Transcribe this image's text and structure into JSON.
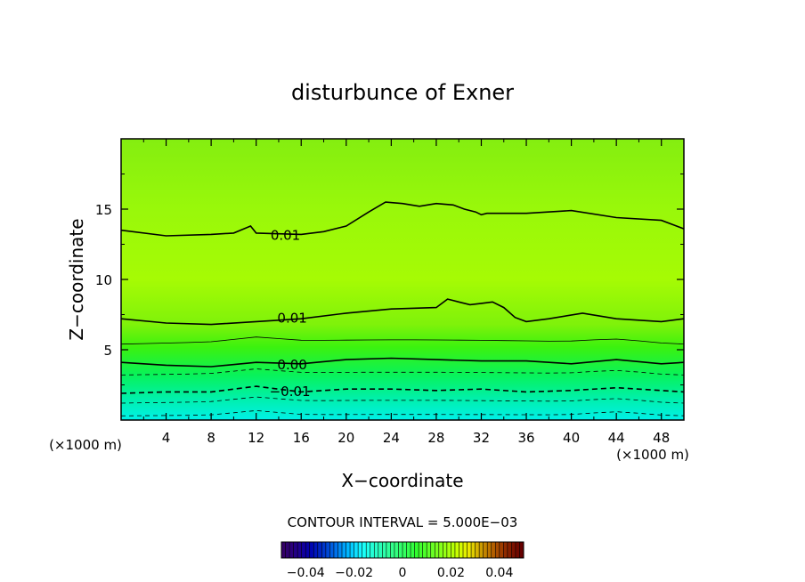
{
  "chart_data": {
    "type": "heatmap",
    "title": "disturbunce of Exner",
    "xlabel": "X−coordinate",
    "ylabel": "Z−coordinate",
    "x_unit_left": "(×1000 m)",
    "x_unit_right": "(×1000 m)",
    "xlim": [
      0,
      50
    ],
    "ylim": [
      0,
      20
    ],
    "x_ticks": [
      4,
      8,
      12,
      16,
      20,
      24,
      28,
      32,
      36,
      40,
      44,
      48
    ],
    "x_tick_labels": [
      "4",
      "8",
      "12",
      "16",
      "20",
      "24",
      "28",
      "32",
      "36",
      "40",
      "44",
      "48"
    ],
    "y_ticks": [
      5,
      10,
      15
    ],
    "y_tick_labels": [
      "5",
      "10",
      "15"
    ],
    "contour_interval_label": "CONTOUR INTERVAL = 5.000E−03",
    "contours": [
      {
        "level": 0.01,
        "label": "0.01",
        "label_at": [
          14.6,
          13.2
        ],
        "points": [
          [
            0,
            13.5
          ],
          [
            4,
            13.1
          ],
          [
            8,
            13.2
          ],
          [
            10,
            13.3
          ],
          [
            11.5,
            13.8
          ],
          [
            12,
            13.3
          ],
          [
            16,
            13.2
          ],
          [
            18,
            13.4
          ],
          [
            20,
            13.8
          ],
          [
            22,
            14.8
          ],
          [
            23.5,
            15.5
          ],
          [
            25,
            15.4
          ],
          [
            26.5,
            15.2
          ],
          [
            28,
            15.4
          ],
          [
            29.5,
            15.3
          ],
          [
            30.5,
            15.0
          ],
          [
            31.5,
            14.8
          ],
          [
            32,
            14.6
          ],
          [
            32.5,
            14.7
          ],
          [
            36,
            14.7
          ],
          [
            40,
            14.9
          ],
          [
            44,
            14.4
          ],
          [
            48,
            14.2
          ],
          [
            50,
            13.6
          ]
        ]
      },
      {
        "level": 0.01,
        "label": "0.01",
        "label_at": [
          15.2,
          7.3
        ],
        "points": [
          [
            0,
            7.2
          ],
          [
            4,
            6.9
          ],
          [
            8,
            6.8
          ],
          [
            12,
            7.0
          ],
          [
            16,
            7.2
          ],
          [
            20,
            7.6
          ],
          [
            24,
            7.9
          ],
          [
            28,
            8.0
          ],
          [
            29,
            8.6
          ],
          [
            30,
            8.4
          ],
          [
            31,
            8.2
          ],
          [
            32,
            8.3
          ],
          [
            33,
            8.4
          ],
          [
            34,
            8.0
          ],
          [
            35,
            7.3
          ],
          [
            36,
            7.0
          ],
          [
            38,
            7.2
          ],
          [
            41,
            7.6
          ],
          [
            44,
            7.2
          ],
          [
            48,
            7.0
          ],
          [
            50,
            7.2
          ]
        ]
      },
      {
        "level": 0.0,
        "label": "0.00",
        "label_at": [
          15.2,
          4.0
        ],
        "points": [
          [
            0,
            4.1
          ],
          [
            4,
            3.9
          ],
          [
            8,
            3.8
          ],
          [
            12,
            4.1
          ],
          [
            16,
            4.0
          ],
          [
            20,
            4.3
          ],
          [
            24,
            4.4
          ],
          [
            28,
            4.3
          ],
          [
            32,
            4.2
          ],
          [
            36,
            4.2
          ],
          [
            40,
            4.0
          ],
          [
            44,
            4.3
          ],
          [
            48,
            4.0
          ],
          [
            50,
            4.1
          ]
        ]
      },
      {
        "level": -0.01,
        "label": "−0.01",
        "label_at": [
          15.0,
          2.1
        ],
        "points": [
          [
            0,
            1.9
          ],
          [
            4,
            2.0
          ],
          [
            8,
            2.0
          ],
          [
            12,
            2.4
          ],
          [
            16,
            2.0
          ],
          [
            20,
            2.2
          ],
          [
            24,
            2.2
          ],
          [
            28,
            2.1
          ],
          [
            32,
            2.2
          ],
          [
            36,
            2.0
          ],
          [
            40,
            2.1
          ],
          [
            44,
            2.3
          ],
          [
            48,
            2.1
          ],
          [
            50,
            2.0
          ]
        ]
      }
    ],
    "colorbar": {
      "range": [
        -0.05,
        0.05
      ],
      "tick_labels": [
        "−0.04",
        "−0.02",
        "0",
        "0.02",
        "0.04"
      ],
      "tick_values": [
        -0.04,
        -0.02,
        0,
        0.02,
        0.04
      ]
    },
    "colors": {
      "band_top": "#84ee10",
      "band_upper": "#99f80a",
      "band_mid": "#a6fb04",
      "band_green": "#3cf20e",
      "band_bottom": "#00f0e8"
    }
  }
}
